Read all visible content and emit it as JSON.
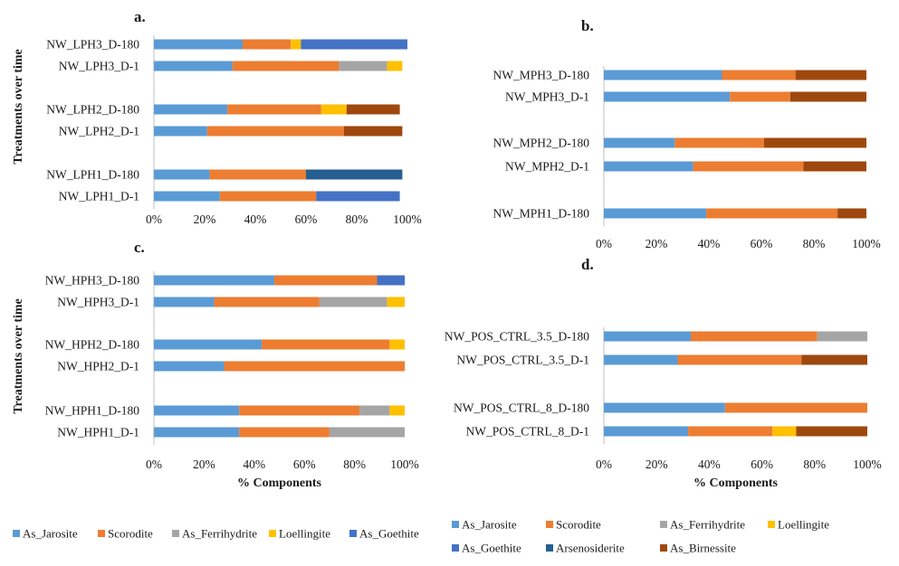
{
  "colors": {
    "As_Jarosite": "#5b9bd5",
    "Scorodite": "#ed7d31",
    "As_Ferrihydrite": "#a5a5a5",
    "Loellingite": "#ffc000",
    "As_Goethite": "#4472c4",
    "Arsenosiderite": "#255e91",
    "As_Birnessite": "#9e480e"
  },
  "chart_data": [
    {
      "type": "bar",
      "orientation": "horizontal",
      "stacked": "percent",
      "panel": "a.",
      "ylabel": "Treatments over time",
      "xlabel": "",
      "xlim": [
        0,
        100
      ],
      "xticks": [
        "0%",
        "20%",
        "40%",
        "60%",
        "80%",
        "100%"
      ],
      "categories": [
        "NW_LPH3_D-180",
        "NW_LPH3_D-1",
        "",
        "NW_LPH2_D-180",
        "NW_LPH2_D-1",
        "",
        "NW_LPH1_D-180",
        "NW_LPH1_D-1"
      ],
      "series": [
        {
          "name": "As_Jarosite",
          "values": [
            35,
            31,
            null,
            29,
            21,
            null,
            22,
            26
          ]
        },
        {
          "name": "Scorodite",
          "values": [
            19,
            42,
            null,
            37,
            54,
            null,
            38,
            38
          ]
        },
        {
          "name": "As_Ferrihydrite",
          "values": [
            0,
            19,
            null,
            0,
            0,
            null,
            0,
            0
          ]
        },
        {
          "name": "Loellingite",
          "values": [
            4,
            6,
            null,
            10,
            0,
            null,
            0,
            0
          ]
        },
        {
          "name": "As_Goethite",
          "values": [
            42,
            0,
            null,
            0,
            0,
            null,
            0,
            33
          ]
        },
        {
          "name": "Arsenosiderite",
          "values": [
            0,
            0,
            null,
            0,
            0,
            null,
            38,
            0
          ]
        },
        {
          "name": "As_Birnessite",
          "values": [
            0,
            0,
            null,
            21,
            23,
            null,
            0,
            0
          ]
        }
      ]
    },
    {
      "type": "bar",
      "orientation": "horizontal",
      "stacked": "percent",
      "panel": "b.",
      "ylabel": "",
      "xlabel": "",
      "xlim": [
        0,
        100
      ],
      "xticks": [
        "0%",
        "20%",
        "40%",
        "60%",
        "80%",
        "100%"
      ],
      "categories": [
        "NW_MPH3_D-180",
        "NW_MPH3_D-1",
        "",
        "NW_MPH2_D-180",
        "NW_MPH2_D-1",
        "",
        "NW_MPH1_D-180"
      ],
      "series": [
        {
          "name": "As_Jarosite",
          "values": [
            45,
            48,
            null,
            27,
            34,
            null,
            39
          ]
        },
        {
          "name": "Scorodite",
          "values": [
            28,
            23,
            null,
            34,
            42,
            null,
            50
          ]
        },
        {
          "name": "As_Birnessite",
          "values": [
            27,
            29,
            null,
            39,
            24,
            null,
            11
          ]
        }
      ]
    },
    {
      "type": "bar",
      "orientation": "horizontal",
      "stacked": "percent",
      "panel": "c.",
      "ylabel": "Treatments over time",
      "xlabel": "% Components",
      "xlim": [
        0,
        100
      ],
      "xticks": [
        "0%",
        "20%",
        "40%",
        "60%",
        "80%",
        "100%"
      ],
      "categories": [
        "NW_HPH3_D-180",
        "NW_HPH3_D-1",
        "",
        "NW_HPH2_D-180",
        "NW_HPH2_D-1",
        "",
        "NW_HPH1_D-180",
        "NW_HPH1_D-1"
      ],
      "series": [
        {
          "name": "As_Jarosite",
          "values": [
            48,
            24,
            null,
            43,
            28,
            null,
            34,
            34
          ]
        },
        {
          "name": "Scorodite",
          "values": [
            41,
            42,
            null,
            51,
            72,
            null,
            48,
            36
          ]
        },
        {
          "name": "As_Ferrihydrite",
          "values": [
            0,
            27,
            null,
            0,
            0,
            null,
            12,
            30
          ]
        },
        {
          "name": "Loellingite",
          "values": [
            0,
            7,
            null,
            6,
            0,
            null,
            6,
            0
          ]
        },
        {
          "name": "As_Goethite",
          "values": [
            11,
            0,
            null,
            0,
            0,
            null,
            0,
            0
          ]
        }
      ]
    },
    {
      "type": "bar",
      "orientation": "horizontal",
      "stacked": "percent",
      "panel": "d.",
      "ylabel": "",
      "xlabel": "% Components",
      "xlim": [
        0,
        100
      ],
      "xticks": [
        "0%",
        "20%",
        "40%",
        "60%",
        "80%",
        "100%"
      ],
      "categories": [
        "NW_POS_CTRL_3.5_D-180",
        "NW_POS_CTRL_3.5_D-1",
        "",
        "NW_POS_CTRL_8_D-180",
        "NW_POS_CTRL_8_D-1"
      ],
      "series": [
        {
          "name": "As_Jarosite",
          "values": [
            33,
            28,
            null,
            46,
            32
          ]
        },
        {
          "name": "Scorodite",
          "values": [
            48,
            47,
            null,
            54,
            32
          ]
        },
        {
          "name": "As_Ferrihydrite",
          "values": [
            19,
            0,
            null,
            0,
            0
          ]
        },
        {
          "name": "Loellingite",
          "values": [
            0,
            0,
            null,
            0,
            9
          ]
        },
        {
          "name": "As_Birnessite",
          "values": [
            0,
            25,
            null,
            0,
            27
          ]
        }
      ]
    }
  ],
  "legends": [
    {
      "entries": [
        "As_Jarosite",
        "Scorodite",
        "As_Ferrihydrite",
        "Loellingite",
        "As_Goethite"
      ]
    },
    {
      "entries": [
        "As_Jarosite",
        "Scorodite",
        "As_Ferrihydrite",
        "Loellingite",
        "As_Goethite",
        "Arsenosiderite",
        "As_Birnessite"
      ]
    }
  ]
}
